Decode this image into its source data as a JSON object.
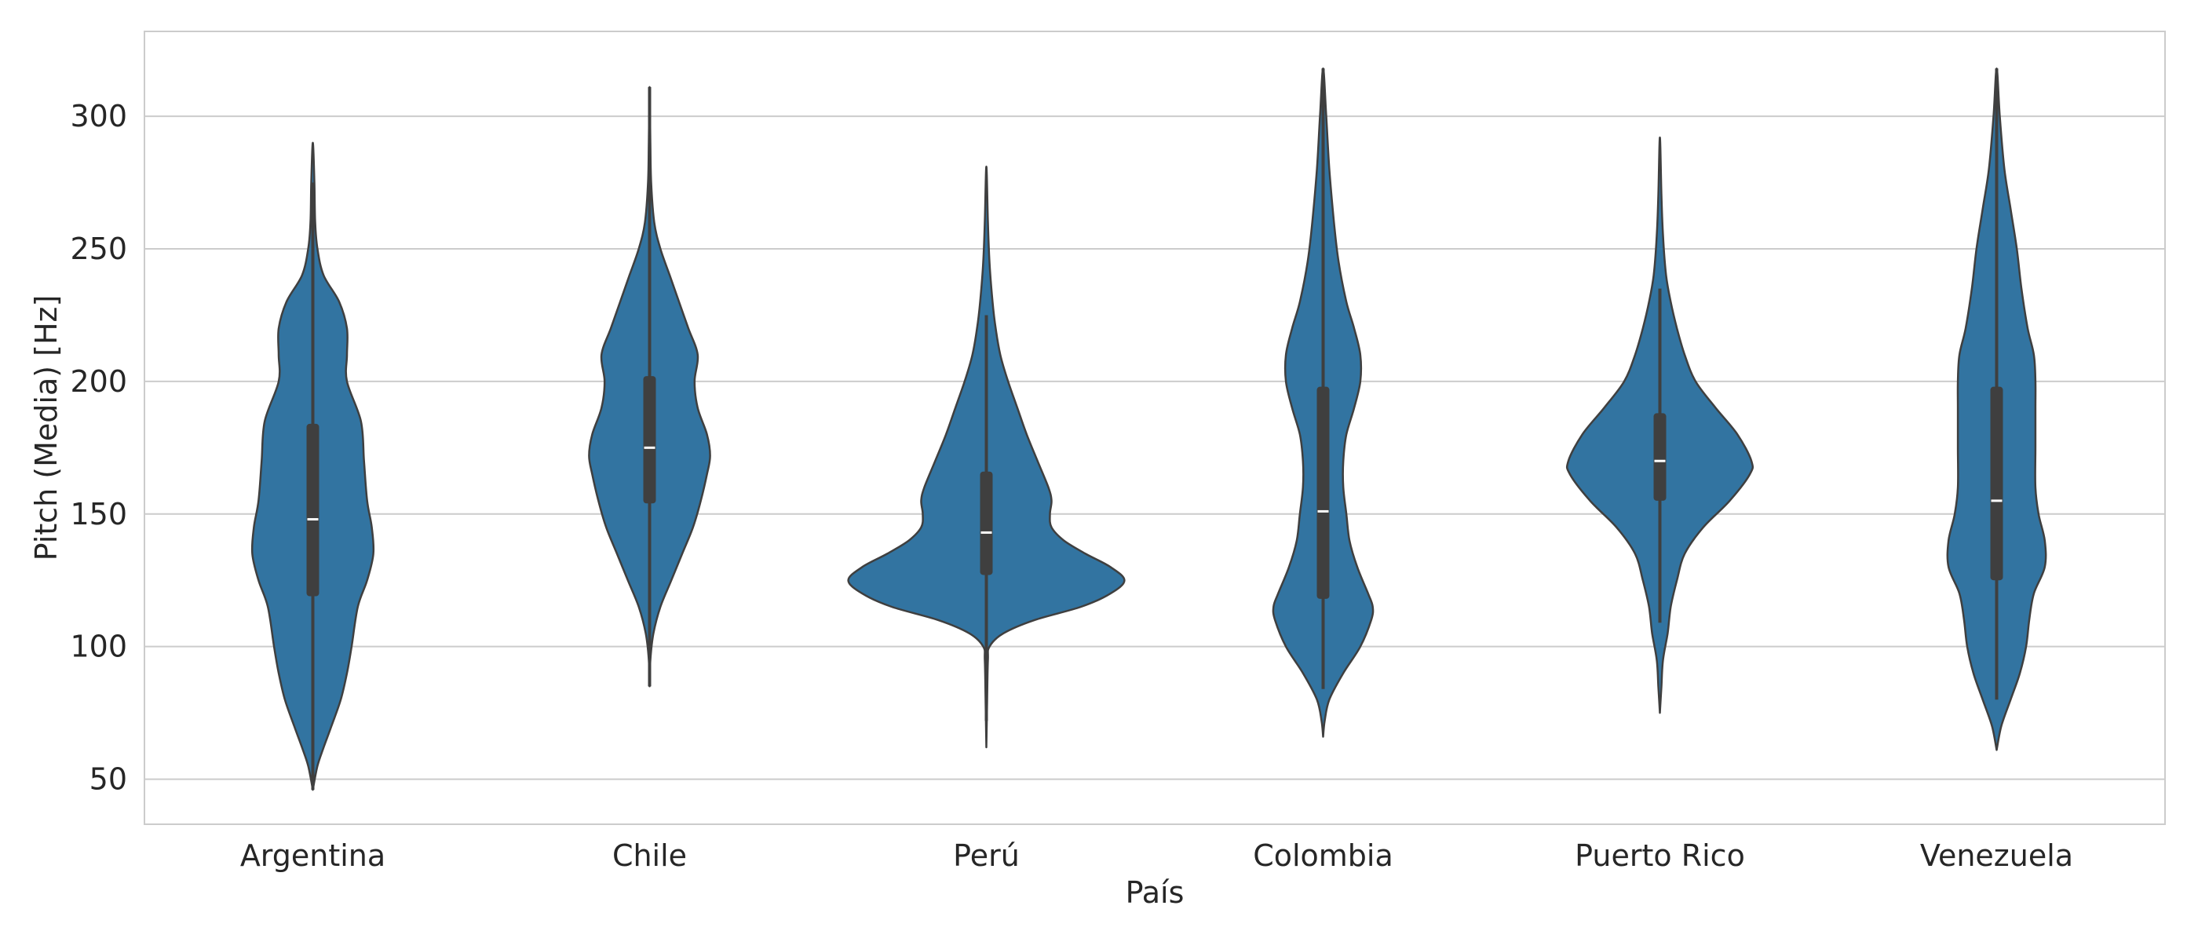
{
  "chart_data": {
    "type": "violin",
    "title": "",
    "xlabel": "País",
    "ylabel": "Pitch (Media) [Hz]",
    "ylim": [
      33,
      332
    ],
    "yticks": [
      50,
      100,
      150,
      200,
      250,
      300
    ],
    "grid": true,
    "legend": "none",
    "colors": {
      "fill": "#3274a1",
      "outline": "#3f3f3f",
      "box": "#3f3f3f",
      "median": "#ffffff",
      "grid": "#cccccc",
      "frame": "#cccccc"
    },
    "categories": [
      "Argentina",
      "Chile",
      "Perú",
      "Colombia",
      "Puerto Rico",
      "Venezuela"
    ],
    "violins": [
      {
        "category": "Argentina",
        "min": 46,
        "max": 290,
        "whisker_low": 46,
        "whisker_high": 275,
        "q1": 119,
        "median": 148,
        "q3": 184,
        "density": [
          [
            46,
            0
          ],
          [
            55,
            6
          ],
          [
            62,
            14
          ],
          [
            70,
            24
          ],
          [
            80,
            36
          ],
          [
            90,
            44
          ],
          [
            100,
            50
          ],
          [
            115,
            58
          ],
          [
            125,
            70
          ],
          [
            135,
            78
          ],
          [
            145,
            76
          ],
          [
            155,
            70
          ],
          [
            170,
            66
          ],
          [
            185,
            62
          ],
          [
            200,
            44
          ],
          [
            210,
            44
          ],
          [
            220,
            44
          ],
          [
            230,
            34
          ],
          [
            240,
            14
          ],
          [
            250,
            6
          ],
          [
            260,
            3
          ],
          [
            275,
            2
          ],
          [
            290,
            0
          ]
        ]
      },
      {
        "category": "Chile",
        "min": 85,
        "max": 311,
        "whisker_low": 85,
        "whisker_high": 311,
        "q1": 154,
        "median": 175,
        "q3": 202,
        "density": [
          [
            85,
            0
          ],
          [
            95,
            1
          ],
          [
            105,
            5
          ],
          [
            115,
            14
          ],
          [
            125,
            28
          ],
          [
            135,
            42
          ],
          [
            145,
            56
          ],
          [
            155,
            66
          ],
          [
            165,
            74
          ],
          [
            172,
            78
          ],
          [
            180,
            74
          ],
          [
            190,
            62
          ],
          [
            200,
            58
          ],
          [
            210,
            62
          ],
          [
            220,
            50
          ],
          [
            230,
            38
          ],
          [
            240,
            26
          ],
          [
            250,
            14
          ],
          [
            260,
            6
          ],
          [
            275,
            2
          ],
          [
            290,
            1
          ],
          [
            311,
            0
          ]
        ]
      },
      {
        "category": "Perú",
        "min": 62,
        "max": 281,
        "whisker_low": 72,
        "whisker_high": 225,
        "q1": 127,
        "median": 143,
        "q3": 166,
        "density": [
          [
            62,
            0
          ],
          [
            80,
            1
          ],
          [
            95,
            2
          ],
          [
            100,
            4
          ],
          [
            105,
            22
          ],
          [
            110,
            62
          ],
          [
            115,
            122
          ],
          [
            120,
            160
          ],
          [
            125,
            178
          ],
          [
            130,
            160
          ],
          [
            135,
            128
          ],
          [
            140,
            100
          ],
          [
            145,
            84
          ],
          [
            150,
            82
          ],
          [
            155,
            84
          ],
          [
            160,
            80
          ],
          [
            170,
            66
          ],
          [
            180,
            52
          ],
          [
            190,
            40
          ],
          [
            200,
            28
          ],
          [
            210,
            18
          ],
          [
            220,
            12
          ],
          [
            230,
            8
          ],
          [
            245,
            4
          ],
          [
            260,
            2
          ],
          [
            281,
            0
          ]
        ]
      },
      {
        "category": "Colombia",
        "min": 66,
        "max": 318,
        "whisker_low": 84,
        "whisker_high": 318,
        "q1": 118,
        "median": 151,
        "q3": 198,
        "density": [
          [
            66,
            0
          ],
          [
            72,
            2
          ],
          [
            80,
            8
          ],
          [
            90,
            26
          ],
          [
            100,
            48
          ],
          [
            110,
            62
          ],
          [
            115,
            64
          ],
          [
            120,
            58
          ],
          [
            130,
            44
          ],
          [
            140,
            34
          ],
          [
            150,
            30
          ],
          [
            160,
            26
          ],
          [
            170,
            26
          ],
          [
            180,
            30
          ],
          [
            190,
            40
          ],
          [
            200,
            48
          ],
          [
            210,
            48
          ],
          [
            220,
            40
          ],
          [
            230,
            30
          ],
          [
            245,
            20
          ],
          [
            260,
            14
          ],
          [
            280,
            8
          ],
          [
            300,
            4
          ],
          [
            318,
            0
          ]
        ]
      },
      {
        "category": "Puerto Rico",
        "min": 75,
        "max": 292,
        "whisker_low": 109,
        "whisker_high": 235,
        "q1": 155,
        "median": 170,
        "q3": 188,
        "density": [
          [
            75,
            0
          ],
          [
            85,
            2
          ],
          [
            95,
            4
          ],
          [
            105,
            10
          ],
          [
            115,
            14
          ],
          [
            125,
            22
          ],
          [
            135,
            32
          ],
          [
            145,
            56
          ],
          [
            155,
            90
          ],
          [
            165,
            116
          ],
          [
            170,
            118
          ],
          [
            180,
            100
          ],
          [
            190,
            72
          ],
          [
            200,
            46
          ],
          [
            210,
            32
          ],
          [
            220,
            22
          ],
          [
            230,
            14
          ],
          [
            240,
            8
          ],
          [
            255,
            4
          ],
          [
            270,
            2
          ],
          [
            292,
            0
          ]
        ]
      },
      {
        "category": "Venezuela",
        "min": 61,
        "max": 318,
        "whisker_low": 80,
        "whisker_high": 318,
        "q1": 125,
        "median": 155,
        "q3": 198,
        "density": [
          [
            61,
            0
          ],
          [
            70,
            6
          ],
          [
            80,
            18
          ],
          [
            90,
            30
          ],
          [
            100,
            38
          ],
          [
            110,
            42
          ],
          [
            120,
            48
          ],
          [
            130,
            62
          ],
          [
            140,
            62
          ],
          [
            150,
            54
          ],
          [
            160,
            50
          ],
          [
            175,
            50
          ],
          [
            190,
            50
          ],
          [
            200,
            50
          ],
          [
            210,
            48
          ],
          [
            220,
            40
          ],
          [
            235,
            32
          ],
          [
            250,
            26
          ],
          [
            265,
            18
          ],
          [
            280,
            10
          ],
          [
            300,
            4
          ],
          [
            318,
            0
          ]
        ]
      }
    ]
  }
}
